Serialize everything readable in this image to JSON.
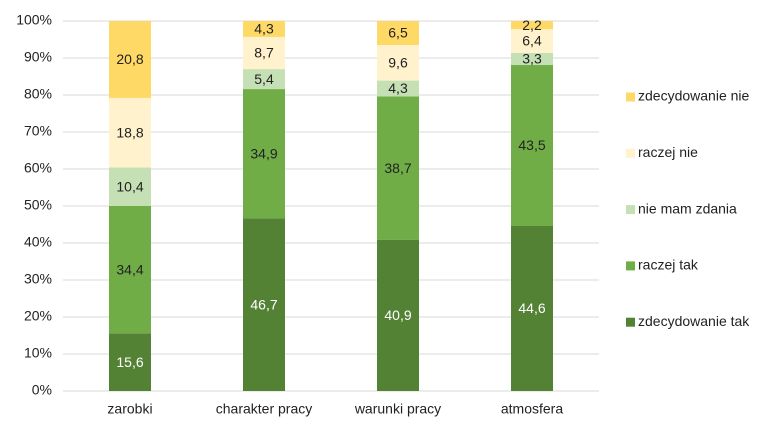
{
  "chart_data": {
    "type": "stacked_bar",
    "categories": [
      "zarobki",
      "charakter pracy",
      "warunki pracy",
      "atmosfera"
    ],
    "series": [
      {
        "name": "zdecydowanie tak",
        "color": "#548235",
        "label_color": "#ffffff",
        "values": [
          15.6,
          46.7,
          40.9,
          44.6
        ],
        "value_labels": [
          "15,6",
          "46,7",
          "40,9",
          "44,6"
        ]
      },
      {
        "name": "raczej tak",
        "color": "#70ad47",
        "label_color": "#222222",
        "values": [
          34.4,
          34.9,
          38.7,
          43.5
        ],
        "value_labels": [
          "34,4",
          "34,9",
          "38,7",
          "43,5"
        ]
      },
      {
        "name": "nie mam zdania",
        "color": "#c5e0b4",
        "label_color": "#222222",
        "values": [
          10.4,
          5.4,
          4.3,
          3.3
        ],
        "value_labels": [
          "10,4",
          "5,4",
          "4,3",
          "3,3"
        ]
      },
      {
        "name": "raczej nie",
        "color": "#fff2cc",
        "label_color": "#222222",
        "values": [
          18.8,
          8.7,
          9.6,
          6.4
        ],
        "value_labels": [
          "18,8",
          "8,7",
          "9,6",
          "6,4"
        ]
      },
      {
        "name": "zdecydowanie nie",
        "color": "#ffd966",
        "label_color": "#222222",
        "values": [
          20.8,
          4.3,
          6.5,
          2.2
        ],
        "value_labels": [
          "20,8",
          "4,3",
          "6,5",
          "2,2"
        ]
      }
    ],
    "ylim": [
      0,
      100
    ],
    "yticks": [
      {
        "value": 0,
        "label": "0%"
      },
      {
        "value": 10,
        "label": "10%"
      },
      {
        "value": 20,
        "label": "20%"
      },
      {
        "value": 30,
        "label": "30%"
      },
      {
        "value": 40,
        "label": "40%"
      },
      {
        "value": 50,
        "label": "50%"
      },
      {
        "value": 60,
        "label": "60%"
      },
      {
        "value": 70,
        "label": "70%"
      },
      {
        "value": 80,
        "label": "80%"
      },
      {
        "value": 90,
        "label": "90%"
      },
      {
        "value": 100,
        "label": "100%"
      }
    ],
    "grid": true,
    "legend": "right"
  }
}
